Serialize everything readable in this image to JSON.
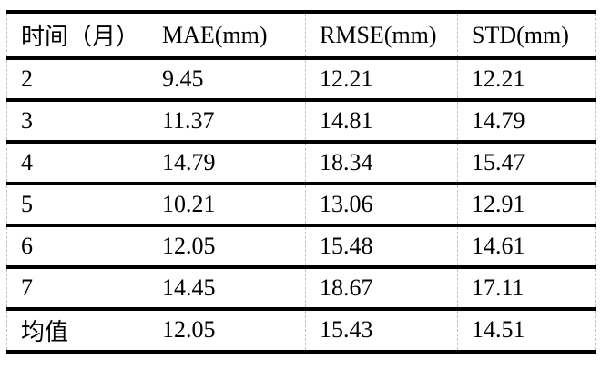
{
  "table": {
    "headers": [
      "时间（月）",
      "MAE(mm)",
      "RMSE(mm)",
      "STD(mm)"
    ],
    "rows": [
      [
        "2",
        "9.45",
        "12.21",
        "12.21"
      ],
      [
        "3",
        "11.37",
        "14.81",
        "14.79"
      ],
      [
        "4",
        "14.79",
        "18.34",
        "15.47"
      ],
      [
        "5",
        "10.21",
        "13.06",
        "12.91"
      ],
      [
        "6",
        "12.05",
        "15.48",
        "14.61"
      ],
      [
        "7",
        "14.45",
        "18.67",
        "17.11"
      ],
      [
        "均值",
        "12.05",
        "15.43",
        "14.51"
      ]
    ]
  },
  "colors": {
    "background": "#ffffff",
    "text": "#000000",
    "rule_black": "#000000",
    "column_dash_gray": "#c0c0c0"
  },
  "chart_data": {
    "type": "table",
    "columns": [
      "时间（月）",
      "MAE(mm)",
      "RMSE(mm)",
      "STD(mm)"
    ],
    "rows": [
      {
        "时间（月）": "2",
        "MAE(mm)": 9.45,
        "RMSE(mm)": 12.21,
        "STD(mm)": 12.21
      },
      {
        "时间（月）": "3",
        "MAE(mm)": 11.37,
        "RMSE(mm)": 14.81,
        "STD(mm)": 14.79
      },
      {
        "时间（月）": "4",
        "MAE(mm)": 14.79,
        "RMSE(mm)": 18.34,
        "STD(mm)": 15.47
      },
      {
        "时间（月）": "5",
        "MAE(mm)": 10.21,
        "RMSE(mm)": 13.06,
        "STD(mm)": 12.91
      },
      {
        "时间（月）": "6",
        "MAE(mm)": 12.05,
        "RMSE(mm)": 15.48,
        "STD(mm)": 14.61
      },
      {
        "时间（月）": "7",
        "MAE(mm)": 14.45,
        "RMSE(mm)": 18.67,
        "STD(mm)": 17.11
      },
      {
        "时间（月）": "均值",
        "MAE(mm)": 12.05,
        "RMSE(mm)": 15.43,
        "STD(mm)": 14.51
      }
    ]
  }
}
